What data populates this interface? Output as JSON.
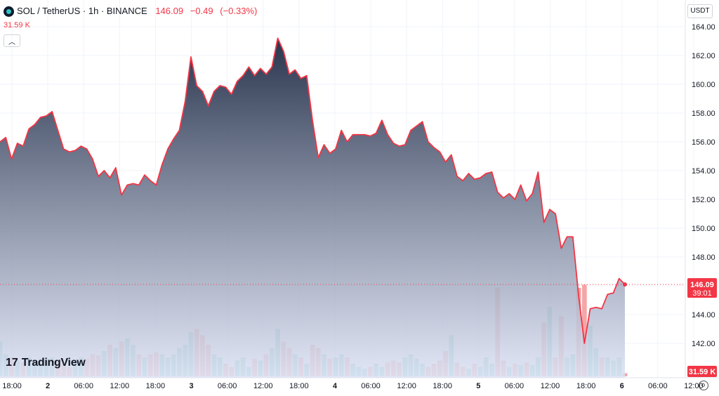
{
  "header": {
    "symbol_title": "SOL / TetherUS · 1h · BINANCE",
    "last_price": "146.09",
    "change": "−0.49",
    "change_pct": "(−0.33%)",
    "volume_label": "31.59 K",
    "currency": "USDT"
  },
  "branding": {
    "logo_mark": "17",
    "logo_text": "TradingView"
  },
  "price_tag": {
    "price": "146.09",
    "countdown": "39:01"
  },
  "volume_tag": "31.59 K",
  "colors": {
    "line": "#f23645",
    "area_top": "#1e2a44",
    "area_bottom": "#dde3f5",
    "vol_up": "#8fd3ce",
    "vol_down": "#f5a6a6",
    "tag": "#f23645"
  },
  "chart_data": {
    "type": "area",
    "y_ticks": [
      142,
      144,
      146,
      148,
      150,
      152,
      154,
      156,
      158,
      160,
      162,
      164
    ],
    "ylim": [
      140.5,
      165.2
    ],
    "x_ticks": [
      "18:00",
      "2",
      "06:00",
      "12:00",
      "18:00",
      "3",
      "06:00",
      "12:00",
      "18:00",
      "4",
      "06:00",
      "12:00",
      "18:00",
      "5",
      "06:00",
      "12:00",
      "18:00",
      "6",
      "06:00",
      "12:00"
    ],
    "grid": true,
    "series": [
      {
        "values": [
          156.0,
          156.3,
          154.8,
          155.9,
          155.7,
          156.9,
          157.2,
          157.7,
          157.8,
          158.1,
          156.8,
          155.5,
          155.3,
          155.4,
          155.7,
          155.5,
          154.8,
          153.6,
          154.0,
          153.5,
          154.2,
          152.3,
          153.0,
          153.1,
          153.0,
          153.7,
          153.3,
          153.0,
          154.4,
          155.5,
          156.2,
          156.8,
          158.8,
          161.9,
          159.9,
          159.5,
          158.5,
          159.5,
          159.9,
          159.8,
          159.3,
          160.2,
          160.6,
          161.2,
          160.6,
          161.1,
          160.7,
          161.2,
          163.2,
          162.3,
          160.7,
          161.0,
          160.4,
          160.6,
          157.5,
          154.9,
          155.8,
          155.2,
          155.5,
          156.8,
          156.0,
          156.5,
          156.5,
          156.5,
          156.4,
          156.6,
          157.5,
          156.5,
          155.9,
          155.7,
          155.8,
          156.8,
          157.1,
          157.4,
          156.0,
          155.6,
          155.3,
          154.6,
          155.1,
          153.6,
          153.3,
          153.8,
          153.4,
          153.5,
          153.8,
          153.9,
          152.5,
          152.1,
          152.4,
          152.0,
          153.0,
          151.9,
          152.4,
          153.9,
          150.4,
          151.3,
          151.0,
          148.6,
          149.4,
          149.4,
          145.3,
          142.0,
          144.4,
          144.5,
          144.4,
          145.4,
          145.5,
          146.5,
          146.09
        ],
        "colors": [
          "up",
          "up",
          "down",
          "up",
          "down",
          "up",
          "up",
          "up",
          "up",
          "up",
          "down",
          "down",
          "down",
          "up",
          "up",
          "down",
          "down",
          "down",
          "up",
          "down",
          "up",
          "down",
          "up",
          "up",
          "down",
          "up",
          "down",
          "down",
          "up",
          "up",
          "up",
          "up",
          "up",
          "up",
          "down",
          "down",
          "down",
          "up",
          "up",
          "down",
          "down",
          "up",
          "up",
          "up",
          "down",
          "up",
          "down",
          "up",
          "up",
          "down",
          "down",
          "up",
          "down",
          "up",
          "down",
          "down",
          "up",
          "down",
          "up",
          "up",
          "down",
          "up",
          "up",
          "up",
          "down",
          "up",
          "up",
          "down",
          "down",
          "down",
          "up",
          "up",
          "up",
          "up",
          "down",
          "down",
          "down",
          "down",
          "up",
          "down",
          "down",
          "up",
          "down",
          "up",
          "up",
          "up",
          "down",
          "down",
          "up",
          "down",
          "up",
          "down",
          "up",
          "up",
          "down",
          "up",
          "down",
          "down",
          "up",
          "up",
          "down",
          "down",
          "up",
          "up",
          "down",
          "up",
          "up",
          "up",
          "down"
        ],
        "volume": [
          0.55,
          0.35,
          0.3,
          0.25,
          0.22,
          0.3,
          0.25,
          0.28,
          0.25,
          0.3,
          0.22,
          0.2,
          0.15,
          0.22,
          0.3,
          0.28,
          0.35,
          0.33,
          0.4,
          0.5,
          0.45,
          0.55,
          0.6,
          0.5,
          0.35,
          0.3,
          0.35,
          0.38,
          0.35,
          0.3,
          0.35,
          0.45,
          0.5,
          0.7,
          0.75,
          0.65,
          0.5,
          0.35,
          0.3,
          0.2,
          0.15,
          0.25,
          0.3,
          0.15,
          0.28,
          0.25,
          0.35,
          0.45,
          0.75,
          0.55,
          0.45,
          0.35,
          0.3,
          0.2,
          0.5,
          0.45,
          0.35,
          0.28,
          0.3,
          0.35,
          0.3,
          0.2,
          0.15,
          0.12,
          0.15,
          0.2,
          0.15,
          0.22,
          0.25,
          0.22,
          0.3,
          0.35,
          0.28,
          0.2,
          0.15,
          0.2,
          0.25,
          0.4,
          0.65,
          0.22,
          0.15,
          0.12,
          0.2,
          0.15,
          0.3,
          0.2,
          1.4,
          0.25,
          0.15,
          0.2,
          0.18,
          0.22,
          0.18,
          0.3,
          0.85,
          1.1,
          0.3,
          0.95,
          0.3,
          0.35,
          1.4,
          1.45,
          0.8,
          0.45,
          0.3,
          0.3,
          0.25,
          0.3,
          0.05
        ]
      }
    ]
  }
}
